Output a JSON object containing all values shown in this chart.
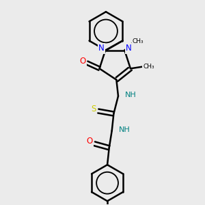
{
  "background_color": "#ebebeb",
  "line_color": "#000000",
  "bond_width": 1.8,
  "atom_colors": {
    "N": "#0000ff",
    "O": "#ff0000",
    "S": "#cccc00",
    "C": "#000000",
    "H": "#008080"
  },
  "figsize": [
    3.0,
    3.0
  ],
  "dpi": 100,
  "xlim": [
    -2.5,
    2.5
  ],
  "ylim": [
    -5.5,
    3.5
  ]
}
